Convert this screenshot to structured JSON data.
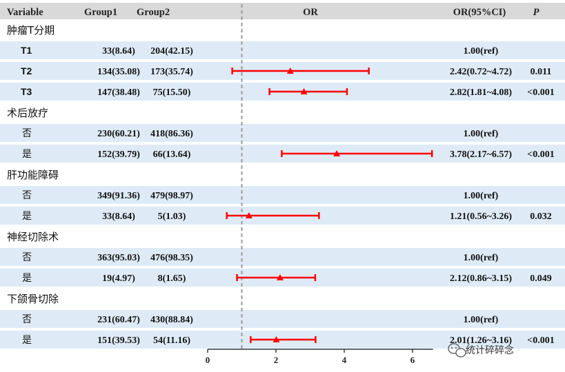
{
  "chart_data": {
    "type": "forest",
    "columns": {
      "variable": "Variable",
      "group1": "Group1",
      "group2": "Group2",
      "plot": "OR",
      "ci": "OR(95%CI)",
      "p": "P"
    },
    "reference_line": 1,
    "xlim": [
      0,
      6.6
    ],
    "x_ticks": [
      "0",
      "2",
      "4",
      "6"
    ],
    "rows": [
      {
        "kind": "section",
        "label": "肿瘤T分期"
      },
      {
        "kind": "item",
        "label": "T1",
        "bold": true,
        "group1": "33(8.64)",
        "group2": "204(42.15)",
        "ci_text": "1.00(ref)",
        "p": ""
      },
      {
        "kind": "item",
        "label": "T2",
        "bold": true,
        "group1": "134(35.08)",
        "group2": "173(35.74)",
        "or": 2.42,
        "lo": 0.72,
        "hi": 4.72,
        "ci_text": "2.42(0.72~4.72)",
        "p": "0.011"
      },
      {
        "kind": "item",
        "label": "T3",
        "bold": true,
        "group1": "147(38.48)",
        "group2": "75(15.50)",
        "or": 2.82,
        "lo": 1.81,
        "hi": 4.08,
        "ci_text": "2.82(1.81~4.08)",
        "p": "<0.001"
      },
      {
        "kind": "section",
        "label": "术后放疗"
      },
      {
        "kind": "item",
        "label": "否",
        "group1": "230(60.21)",
        "group2": "418(86.36)",
        "ci_text": "1.00(ref)",
        "p": ""
      },
      {
        "kind": "item",
        "label": "是",
        "group1": "152(39.79)",
        "group2": "66(13.64)",
        "or": 3.78,
        "lo": 2.17,
        "hi": 6.57,
        "ci_text": "3.78(2.17~6.57)",
        "p": "<0.001"
      },
      {
        "kind": "section",
        "label": "肝功能障碍"
      },
      {
        "kind": "item",
        "label": "否",
        "group1": "349(91.36)",
        "group2": "479(98.97)",
        "ci_text": "1.00(ref)",
        "p": ""
      },
      {
        "kind": "item",
        "label": "是",
        "group1": "33(8.64)",
        "group2": "5(1.03)",
        "or": 1.21,
        "lo": 0.56,
        "hi": 3.26,
        "ci_text": "1.21(0.56~3.26)",
        "p": "0.032"
      },
      {
        "kind": "section",
        "label": "神经切除术"
      },
      {
        "kind": "item",
        "label": "否",
        "group1": "363(95.03)",
        "group2": "476(98.35)",
        "ci_text": "1.00(ref)",
        "p": ""
      },
      {
        "kind": "item",
        "label": "是",
        "group1": "19(4.97)",
        "group2": "8(1.65)",
        "or": 2.12,
        "lo": 0.86,
        "hi": 3.15,
        "ci_text": "2.12(0.86~3.15)",
        "p": "0.049"
      },
      {
        "kind": "section",
        "label": "下颌骨切除"
      },
      {
        "kind": "item",
        "label": "否",
        "group1": "231(60.47)",
        "group2": "430(88.84)",
        "ci_text": "1.00(ref)",
        "p": ""
      },
      {
        "kind": "item",
        "label": "是",
        "group1": "151(39.53)",
        "group2": "54(11.16)",
        "or": 2.01,
        "lo": 1.26,
        "hi": 3.16,
        "ci_text": "2.01(1.26~3.16)",
        "p": "<0.001"
      }
    ],
    "colors": {
      "header_bg": "#d9d9d9",
      "row_band": "#deebf7",
      "marker": "#ff0000",
      "ref_line": "#999999"
    }
  },
  "watermark": {
    "icon": "wechat-icon",
    "text": "统计碎碎念"
  }
}
